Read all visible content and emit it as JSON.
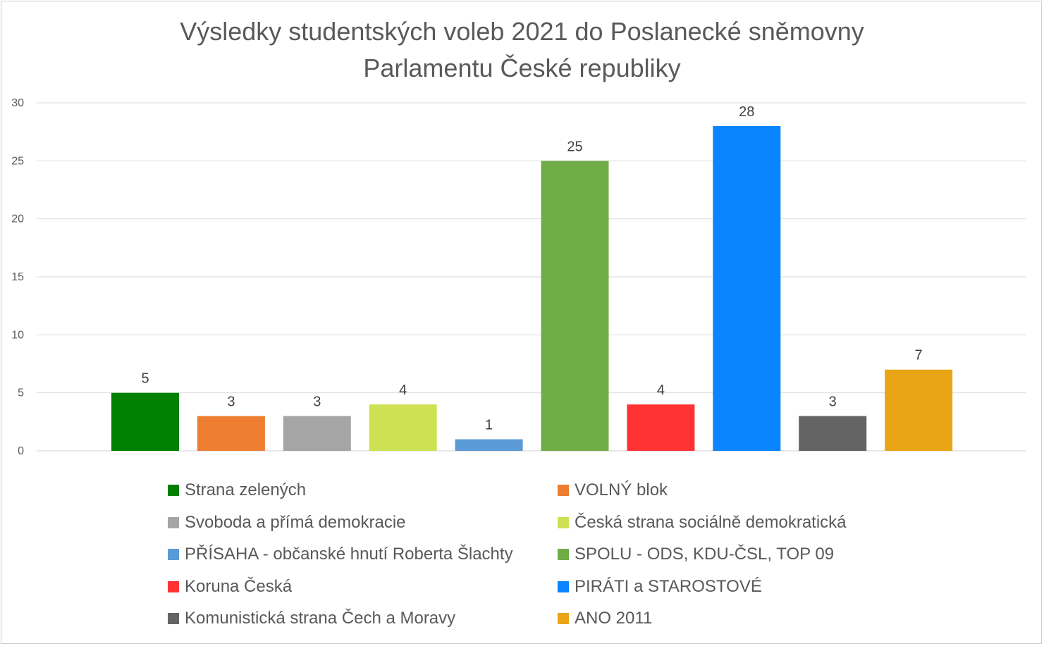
{
  "title": [
    "Výsledky studentských voleb 2021 do Poslanecké sněmovny",
    "Parlamentu České republiky"
  ],
  "chart_data": {
    "type": "bar",
    "title": "Výsledky studentských voleb 2021 do Poslanecké sněmovny Parlamentu České republiky",
    "categories": [
      "Strana zelených",
      "VOLNÝ blok",
      "Svoboda a přímá demokracie",
      "Česká strana sociálně demokratická",
      "PŘÍSAHA - občanské hnutí Roberta Šlachty",
      "SPOLU - ODS, KDU-ČSL, TOP 09",
      "Koruna Česká",
      "PIRÁTI a STAROSTOVÉ",
      "Komunistická strana Čech a Moravy",
      "ANO 2011"
    ],
    "values": [
      5,
      3,
      3,
      4,
      1,
      25,
      4,
      28,
      3,
      7
    ],
    "colors": [
      "#008000",
      "#ed7d31",
      "#a5a5a5",
      "#cde152",
      "#5b9bd5",
      "#70ad47",
      "#ff3333",
      "#0a84ff",
      "#646464",
      "#e9a516"
    ],
    "ylim": [
      0,
      30
    ],
    "yticks": [
      0,
      5,
      10,
      15,
      20,
      25,
      30
    ],
    "grid": true,
    "data_labels": true,
    "legend_position": "bottom"
  }
}
